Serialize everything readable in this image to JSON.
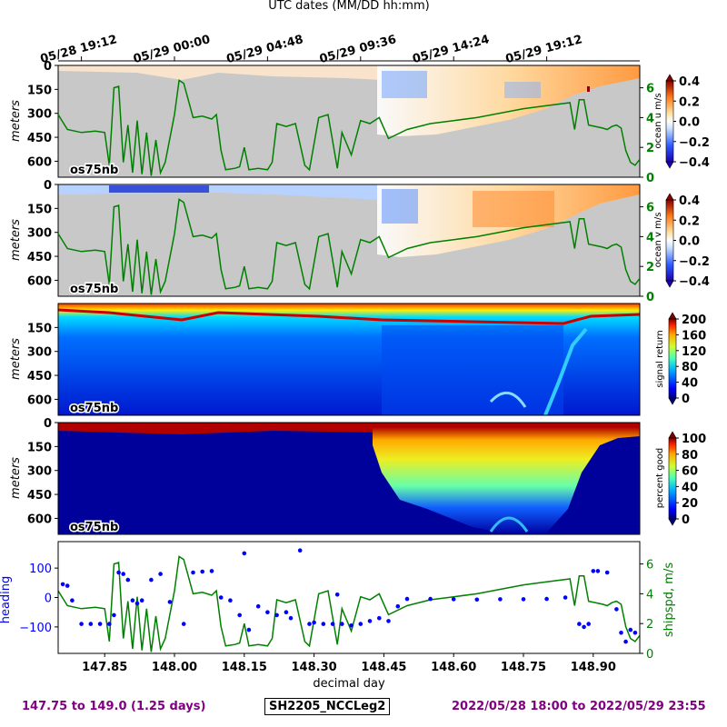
{
  "figure": {
    "top_axis_title": "UTC dates (MM/DD hh:mm)",
    "top_ticks": [
      "05/28 19:12",
      "05/29 00:00",
      "05/29 04:48",
      "05/29 09:36",
      "05/29 14:24",
      "05/29 19:12"
    ],
    "footer_left": "147.75 to 149.0 (1.25 days)",
    "footer_center": "SH2205_NCCLeg2",
    "footer_right": "2022/05/28 18:00 to 2022/05/29 23:55"
  },
  "colors": {
    "no_data": "#c8c8c8",
    "shipspd": "#008000",
    "heading": "#0000ff",
    "footer_text": "#800080"
  },
  "chart_data": [
    {
      "type": "heatmap",
      "id": "ocean-u",
      "instrument_label": "os75nb",
      "ylabel": "meters",
      "yticks": [
        0,
        150,
        300,
        450,
        600
      ],
      "ylim": [
        700,
        0
      ],
      "xlim": [
        147.75,
        149.0
      ],
      "colorbar": {
        "label": "ocean u m/s",
        "colormap": "seismic-like",
        "range": [
          -0.4,
          0.4
        ],
        "ticks": [
          "0.4",
          "0.2",
          "0.0",
          "−0.2",
          "−0.4"
        ]
      },
      "overlay": {
        "name": "shipspd",
        "axis_ticks": [
          "6",
          "4",
          "2",
          "0"
        ],
        "ylim": [
          0,
          7.5
        ]
      }
    },
    {
      "type": "heatmap",
      "id": "ocean-v",
      "instrument_label": "os75nb",
      "ylabel": "meters",
      "yticks": [
        0,
        150,
        300,
        450,
        600
      ],
      "ylim": [
        700,
        0
      ],
      "xlim": [
        147.75,
        149.0
      ],
      "colorbar": {
        "label": "ocean v m/s",
        "colormap": "seismic-like",
        "range": [
          -0.4,
          0.4
        ],
        "ticks": [
          "0.4",
          "0.2",
          "0.0",
          "−0.2",
          "−0.4"
        ]
      },
      "overlay": {
        "name": "shipspd",
        "axis_ticks": [
          "6",
          "4",
          "2",
          "0"
        ],
        "ylim": [
          0,
          7.5
        ]
      }
    },
    {
      "type": "heatmap",
      "id": "signal-return",
      "instrument_label": "os75nb",
      "ylabel": "meters",
      "yticks": [
        150,
        300,
        450,
        600
      ],
      "ylim": [
        700,
        0
      ],
      "xlim": [
        147.75,
        149.0
      ],
      "colorbar": {
        "label": "signal return",
        "colormap": "jet",
        "range": [
          0,
          200
        ],
        "ticks": [
          "200",
          "160",
          "120",
          "80",
          "40",
          "0"
        ]
      }
    },
    {
      "type": "heatmap",
      "id": "percent-good",
      "instrument_label": "os75nb",
      "ylabel": "meters",
      "yticks": [
        0,
        150,
        300,
        450,
        600
      ],
      "ylim": [
        700,
        0
      ],
      "xlim": [
        147.75,
        149.0
      ],
      "colorbar": {
        "label": "percent good",
        "colormap": "jet",
        "range": [
          0,
          100
        ],
        "ticks": [
          "100",
          "80",
          "60",
          "40",
          "20",
          "0"
        ]
      }
    },
    {
      "type": "line",
      "id": "heading-shipspd",
      "xlabel": "decimal day",
      "xticks": [
        "147.85",
        "148.00",
        "148.15",
        "148.30",
        "148.45",
        "148.60",
        "148.75",
        "148.90"
      ],
      "xlim": [
        147.75,
        149.0
      ],
      "left_axis": {
        "label": "heading",
        "ticks": [
          "100",
          "0",
          "−100"
        ],
        "ylim": [
          -190,
          190
        ]
      },
      "right_axis": {
        "label": "shipspd, m/s",
        "ticks": [
          "6",
          "4",
          "2",
          "0"
        ],
        "ylim": [
          0,
          7.5
        ]
      },
      "series": [
        {
          "name": "heading",
          "style": "dots",
          "x": [
            147.76,
            147.77,
            147.78,
            147.8,
            147.82,
            147.84,
            147.86,
            147.87,
            147.88,
            147.89,
            147.9,
            147.91,
            147.92,
            147.93,
            147.95,
            147.97,
            147.99,
            148.02,
            148.04,
            148.06,
            148.08,
            148.1,
            148.12,
            148.14,
            148.15,
            148.16,
            148.18,
            148.2,
            148.22,
            148.24,
            148.25,
            148.27,
            148.29,
            148.3,
            148.32,
            148.34,
            148.35,
            148.36,
            148.38,
            148.4,
            148.42,
            148.44,
            148.46,
            148.48,
            148.5,
            148.55,
            148.6,
            148.65,
            148.7,
            148.75,
            148.8,
            148.84,
            148.87,
            148.88,
            148.89,
            148.9,
            148.91,
            148.93,
            148.95,
            148.96,
            148.97,
            148.98,
            148.99
          ],
          "y": [
            45,
            40,
            -10,
            -90,
            -90,
            -90,
            -90,
            -60,
            85,
            80,
            60,
            -10,
            -20,
            -10,
            60,
            80,
            -15,
            -90,
            85,
            88,
            90,
            0,
            -10,
            -60,
            150,
            -110,
            -30,
            -50,
            -60,
            -50,
            -70,
            160,
            -90,
            -85,
            -90,
            -90,
            10,
            -90,
            -95,
            -90,
            -80,
            -70,
            -80,
            -30,
            -5,
            -5,
            -6,
            -7,
            -6,
            -6,
            -5,
            0,
            -90,
            -100,
            -90,
            90,
            90,
            85,
            -40,
            -120,
            -150,
            -110,
            -120
          ]
        },
        {
          "name": "shipspd",
          "style": "line",
          "x": [
            147.75,
            147.77,
            147.8,
            147.83,
            147.85,
            147.86,
            147.87,
            147.88,
            147.89,
            147.9,
            147.91,
            147.92,
            147.93,
            147.94,
            147.95,
            147.96,
            147.97,
            147.98,
            148.0,
            148.01,
            148.02,
            148.04,
            148.06,
            148.08,
            148.09,
            148.1,
            148.11,
            148.13,
            148.14,
            148.15,
            148.16,
            148.18,
            148.2,
            148.21,
            148.22,
            148.24,
            148.26,
            148.28,
            148.29,
            148.31,
            148.33,
            148.35,
            148.36,
            148.38,
            148.4,
            148.42,
            148.44,
            148.46,
            148.5,
            148.55,
            148.6,
            148.65,
            148.7,
            148.75,
            148.8,
            148.85,
            148.86,
            148.87,
            148.88,
            148.89,
            148.92,
            148.93,
            148.94,
            148.95,
            148.96,
            148.97,
            148.98,
            148.99,
            149.0
          ],
          "y": [
            4.2,
            3.2,
            3.0,
            3.1,
            3.0,
            0.8,
            6.0,
            6.1,
            1.0,
            3.5,
            0.3,
            3.8,
            0.2,
            3.0,
            0.1,
            2.5,
            0.3,
            1.0,
            4.2,
            6.5,
            6.3,
            4.0,
            4.1,
            3.9,
            4.2,
            1.8,
            0.5,
            0.6,
            0.7,
            2.0,
            0.5,
            0.6,
            0.5,
            1.0,
            3.6,
            3.4,
            3.6,
            0.8,
            0.5,
            4.0,
            4.2,
            0.6,
            3.0,
            1.5,
            3.8,
            3.6,
            4.0,
            2.6,
            3.2,
            3.6,
            3.8,
            4.0,
            4.3,
            4.6,
            4.8,
            5.0,
            3.2,
            5.2,
            5.2,
            3.5,
            3.3,
            3.2,
            3.4,
            3.5,
            3.3,
            1.8,
            1.0,
            0.8,
            1.2
          ]
        }
      ]
    }
  ]
}
